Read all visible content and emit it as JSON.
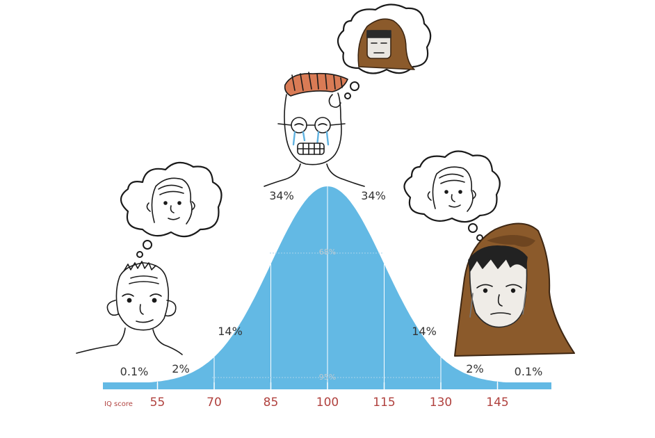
{
  "chart_data": {
    "type": "area",
    "distribution": "normal",
    "mean": 100,
    "sd": 15,
    "xlabel": "IQ score",
    "ticks": [
      "55",
      "70",
      "85",
      "100",
      "115",
      "130",
      "145"
    ],
    "xlim": [
      45,
      155
    ],
    "percentage_labels": [
      "0.1%",
      "2%",
      "14%",
      "34%",
      "34%",
      "14%",
      "2%",
      "0.1%"
    ],
    "band_labels": {
      "inner": "68%",
      "outer": "95%"
    },
    "colors": {
      "curve_fill": "#63b9e4",
      "axis_band": "#63b9e4",
      "tick_text": "#b0413e",
      "text": "#333333"
    }
  },
  "characters": [
    {
      "name": "low-iq-wojak",
      "thought": "bald-wojak"
    },
    {
      "name": "crying-midwit-wojak",
      "thought": "hooded-monk"
    },
    {
      "name": "hooded-monk-wojak",
      "thought": "bald-wojak"
    }
  ]
}
